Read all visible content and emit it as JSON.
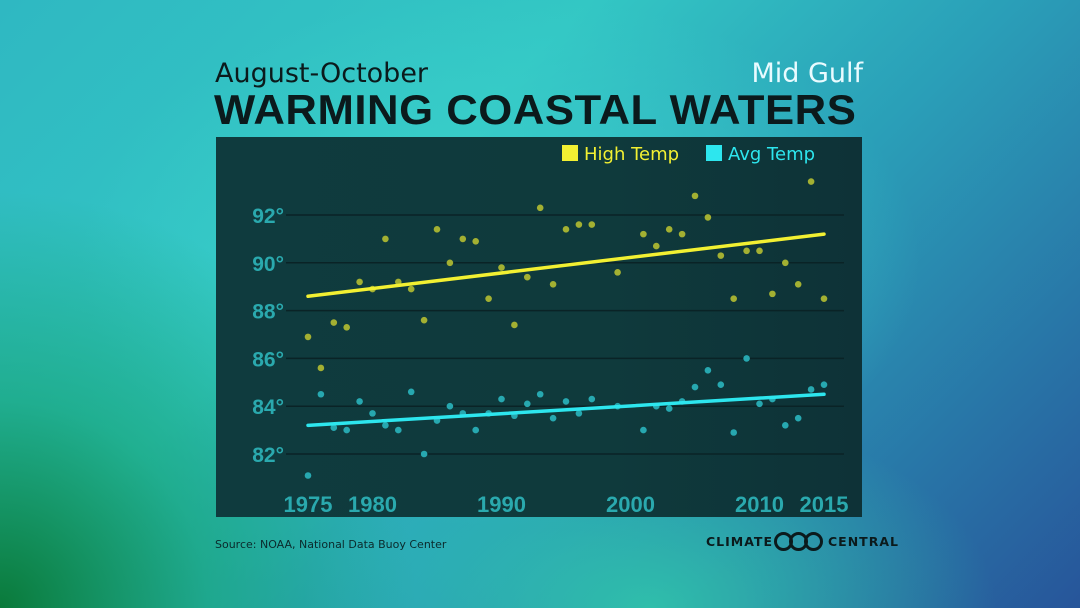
{
  "header": {
    "subtitle": "August-October",
    "region": "Mid Gulf",
    "title": "WARMING COASTAL WATERS"
  },
  "footer": {
    "source": "Source: NOAA, National Data Buoy Center",
    "logo_left": "CLIMATE",
    "logo_right": "CENTRAL"
  },
  "chart_data": {
    "type": "scatter",
    "xlim": [
      1975,
      2015
    ],
    "ylim": [
      80.5,
      95
    ],
    "x_ticks": [
      1975,
      1980,
      1990,
      2000,
      2010,
      2015
    ],
    "x_tick_labels": [
      "1975",
      "1980",
      "1990",
      "2000",
      "2010",
      "2015"
    ],
    "y_ticks": [
      82,
      84,
      86,
      88,
      90,
      92
    ],
    "y_tick_labels": [
      "82°",
      "84°",
      "86°",
      "88°",
      "90°",
      "92°"
    ],
    "grid": true,
    "legend": "top-right",
    "series": [
      {
        "name": "High Temp",
        "color": "#f2f032",
        "point_color": "#a3b032",
        "x": [
          1975,
          1976,
          1977,
          1978,
          1979,
          1980,
          1981,
          1982,
          1983,
          1984,
          1985,
          1986,
          1987,
          1988,
          1989,
          1990,
          1991,
          1992,
          1993,
          1994,
          1995,
          1996,
          1997,
          1999,
          2001,
          2002,
          2003,
          2004,
          2005,
          2006,
          2007,
          2008,
          2009,
          2010,
          2011,
          2012,
          2013,
          2014,
          2015
        ],
        "y": [
          86.9,
          85.6,
          87.5,
          87.3,
          89.2,
          88.9,
          91.0,
          89.2,
          88.9,
          87.6,
          91.4,
          90.0,
          91.0,
          90.9,
          88.5,
          89.8,
          87.4,
          89.4,
          92.3,
          89.1,
          91.4,
          91.6,
          91.6,
          89.6,
          91.2,
          90.7,
          91.4,
          91.2,
          92.8,
          91.9,
          90.3,
          88.5,
          90.5,
          90.5,
          88.7,
          90.0,
          89.1,
          93.4,
          88.5
        ],
        "trend": [
          88.6,
          91.2
        ]
      },
      {
        "name": "Avg Temp",
        "color": "#2de6ee",
        "point_color": "#27a8b0",
        "x": [
          1975,
          1976,
          1977,
          1978,
          1979,
          1980,
          1981,
          1982,
          1983,
          1984,
          1985,
          1986,
          1987,
          1988,
          1989,
          1990,
          1991,
          1992,
          1993,
          1994,
          1995,
          1996,
          1997,
          1999,
          2001,
          2002,
          2003,
          2004,
          2005,
          2006,
          2007,
          2008,
          2009,
          2010,
          2011,
          2012,
          2013,
          2014,
          2015
        ],
        "y": [
          81.1,
          84.5,
          83.1,
          83.0,
          84.2,
          83.7,
          83.2,
          83.0,
          84.6,
          82.0,
          83.4,
          84.0,
          83.7,
          83.0,
          83.7,
          84.3,
          83.6,
          84.1,
          84.5,
          83.5,
          84.2,
          83.7,
          84.3,
          84.0,
          83.0,
          84.0,
          83.9,
          84.2,
          84.8,
          85.5,
          84.9,
          82.9,
          86.0,
          84.1,
          84.3,
          83.2,
          83.5,
          84.7,
          84.9
        ],
        "trend": [
          83.2,
          84.5
        ]
      }
    ]
  }
}
